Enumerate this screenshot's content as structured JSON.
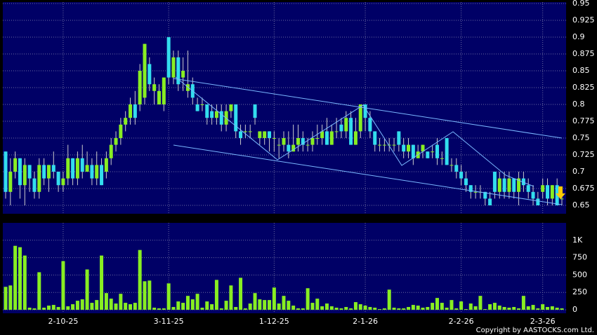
{
  "chart_data": {
    "type": "candlestick",
    "up_color": "#88ee22",
    "down_color": "#33ddee",
    "wick_color": "#cccccc",
    "volume_color": "#88ee22",
    "grid": true,
    "copyright": "Copyright by AASTOCKS.com Ltd.",
    "categories": [
      null,
      null,
      null,
      null,
      null,
      null,
      null,
      null,
      null,
      null,
      null,
      null,
      "2-10-25",
      null,
      null,
      null,
      null,
      null,
      null,
      null,
      null,
      null,
      null,
      null,
      null,
      null,
      null,
      null,
      null,
      null,
      null,
      null,
      null,
      null,
      "3-11-25",
      null,
      null,
      null,
      null,
      null,
      null,
      null,
      null,
      null,
      null,
      null,
      null,
      null,
      null,
      null,
      null,
      null,
      null,
      null,
      null,
      null,
      "1-12-25",
      null,
      null,
      null,
      null,
      null,
      null,
      null,
      null,
      null,
      null,
      null,
      null,
      null,
      null,
      null,
      null,
      null,
      null,
      "2-1-26",
      null,
      null,
      null,
      null,
      null,
      null,
      null,
      null,
      null,
      null,
      null,
      null,
      null,
      null,
      null,
      null,
      null,
      null,
      null,
      "2-2-26",
      null,
      null,
      null,
      null,
      null,
      null,
      null,
      null,
      null,
      null,
      null,
      null,
      null,
      null,
      null,
      null,
      "2-3-26",
      null,
      null,
      null,
      null
    ],
    "open": [
      0.73,
      0.67,
      0.7,
      0.72,
      0.68,
      0.71,
      0.69,
      0.67,
      0.71,
      0.69,
      0.71,
      0.7,
      0.68,
      0.69,
      0.72,
      0.69,
      0.72,
      0.7,
      0.71,
      0.69,
      0.71,
      0.7,
      0.72,
      0.74,
      0.75,
      0.77,
      0.78,
      0.8,
      0.8,
      0.81,
      0.86,
      0.82,
      0.8,
      0.8,
      0.9,
      0.84,
      0.87,
      0.84,
      0.82,
      0.83,
      0.8,
      0.8,
      0.8,
      0.79,
      0.78,
      0.79,
      0.77,
      0.79,
      0.8,
      0.76,
      0.76,
      0.76,
      0.8,
      0.75,
      0.75,
      0.76,
      0.75,
      0.74,
      0.74,
      0.74,
      0.73,
      0.74,
      0.75,
      0.74,
      0.74,
      0.75,
      0.75,
      0.76,
      0.74,
      0.76,
      0.77,
      0.76,
      0.78,
      0.74,
      0.76,
      0.8,
      0.78,
      0.76,
      0.74,
      0.74,
      0.74,
      0.74,
      0.76,
      0.74,
      0.73,
      0.74,
      0.72,
      0.73,
      0.73,
      0.73,
      0.74,
      0.72,
      0.75,
      0.71,
      0.71,
      0.7,
      0.69,
      0.68,
      0.67,
      0.67,
      0.67,
      0.66,
      0.7,
      0.67,
      0.69,
      0.67,
      0.69,
      0.67,
      0.69,
      0.68,
      0.67,
      0.66,
      0.67,
      0.68,
      0.66,
      0.68,
      0.66
    ],
    "high": [
      0.73,
      0.72,
      0.73,
      0.72,
      0.72,
      0.71,
      0.7,
      0.72,
      0.72,
      0.71,
      0.73,
      0.7,
      0.7,
      0.74,
      0.72,
      0.73,
      0.74,
      0.73,
      0.72,
      0.73,
      0.72,
      0.73,
      0.75,
      0.76,
      0.78,
      0.79,
      0.81,
      0.82,
      0.86,
      0.89,
      0.87,
      0.84,
      0.83,
      0.84,
      0.9,
      0.88,
      0.88,
      0.87,
      0.88,
      0.84,
      0.81,
      0.81,
      0.8,
      0.8,
      0.8,
      0.8,
      0.8,
      0.8,
      0.8,
      0.77,
      0.77,
      0.77,
      0.8,
      0.76,
      0.76,
      0.76,
      0.76,
      0.75,
      0.76,
      0.76,
      0.77,
      0.77,
      0.76,
      0.75,
      0.76,
      0.77,
      0.77,
      0.78,
      0.77,
      0.78,
      0.78,
      0.79,
      0.79,
      0.78,
      0.8,
      0.8,
      0.79,
      0.76,
      0.75,
      0.75,
      0.75,
      0.75,
      0.76,
      0.75,
      0.75,
      0.74,
      0.74,
      0.74,
      0.73,
      0.74,
      0.75,
      0.73,
      0.75,
      0.72,
      0.72,
      0.71,
      0.7,
      0.68,
      0.68,
      0.68,
      0.67,
      0.67,
      0.7,
      0.7,
      0.7,
      0.7,
      0.69,
      0.7,
      0.7,
      0.69,
      0.68,
      0.67,
      0.69,
      0.69,
      0.68,
      0.69,
      0.67
    ],
    "low": [
      0.66,
      0.65,
      0.69,
      0.66,
      0.65,
      0.67,
      0.66,
      0.66,
      0.68,
      0.67,
      0.69,
      0.67,
      0.67,
      0.68,
      0.68,
      0.68,
      0.69,
      0.7,
      0.68,
      0.68,
      0.68,
      0.69,
      0.71,
      0.73,
      0.74,
      0.76,
      0.77,
      0.77,
      0.79,
      0.8,
      0.82,
      0.8,
      0.8,
      0.79,
      0.83,
      0.83,
      0.82,
      0.82,
      0.81,
      0.8,
      0.79,
      0.79,
      0.77,
      0.77,
      0.77,
      0.76,
      0.76,
      0.78,
      0.75,
      0.74,
      0.75,
      0.75,
      0.77,
      0.74,
      0.74,
      0.73,
      0.73,
      0.72,
      0.73,
      0.72,
      0.73,
      0.73,
      0.73,
      0.73,
      0.73,
      0.74,
      0.74,
      0.74,
      0.74,
      0.75,
      0.75,
      0.75,
      0.74,
      0.74,
      0.75,
      0.76,
      0.75,
      0.73,
      0.73,
      0.73,
      0.73,
      0.73,
      0.73,
      0.72,
      0.72,
      0.71,
      0.72,
      0.72,
      0.72,
      0.72,
      0.71,
      0.71,
      0.71,
      0.7,
      0.69,
      0.68,
      0.67,
      0.66,
      0.66,
      0.66,
      0.65,
      0.65,
      0.66,
      0.66,
      0.66,
      0.66,
      0.66,
      0.65,
      0.67,
      0.66,
      0.65,
      0.65,
      0.66,
      0.65,
      0.65,
      0.65,
      0.65
    ],
    "close": [
      0.67,
      0.7,
      0.72,
      0.68,
      0.71,
      0.69,
      0.67,
      0.71,
      0.69,
      0.71,
      0.7,
      0.68,
      0.69,
      0.72,
      0.69,
      0.72,
      0.7,
      0.71,
      0.69,
      0.71,
      0.68,
      0.72,
      0.74,
      0.75,
      0.77,
      0.78,
      0.8,
      0.78,
      0.85,
      0.89,
      0.83,
      0.83,
      0.82,
      0.84,
      0.84,
      0.87,
      0.83,
      0.85,
      0.83,
      0.81,
      0.79,
      0.8,
      0.78,
      0.78,
      0.79,
      0.77,
      0.79,
      0.8,
      0.76,
      0.75,
      0.76,
      0.76,
      0.78,
      0.76,
      0.76,
      0.75,
      0.75,
      0.74,
      0.75,
      0.73,
      0.74,
      0.75,
      0.74,
      0.74,
      0.75,
      0.75,
      0.76,
      0.74,
      0.76,
      0.76,
      0.76,
      0.78,
      0.74,
      0.76,
      0.8,
      0.78,
      0.76,
      0.74,
      0.74,
      0.74,
      0.74,
      0.74,
      0.74,
      0.73,
      0.74,
      0.72,
      0.73,
      0.74,
      0.72,
      0.73,
      0.72,
      0.72,
      0.71,
      0.71,
      0.7,
      0.69,
      0.68,
      0.67,
      0.67,
      0.67,
      0.66,
      0.65,
      0.67,
      0.69,
      0.67,
      0.69,
      0.67,
      0.69,
      0.68,
      0.67,
      0.66,
      0.65,
      0.68,
      0.66,
      0.68,
      0.65,
      0.66
    ],
    "volume": [
      330,
      350,
      920,
      900,
      780,
      30,
      20,
      540,
      30,
      60,
      70,
      40,
      700,
      50,
      80,
      130,
      150,
      580,
      100,
      140,
      780,
      240,
      160,
      90,
      230,
      100,
      80,
      100,
      860,
      410,
      420,
      30,
      20,
      20,
      380,
      40,
      120,
      100,
      200,
      150,
      230,
      30,
      120,
      80,
      430,
      20,
      130,
      350,
      40,
      460,
      20,
      90,
      240,
      150,
      140,
      140,
      320,
      90,
      200,
      130,
      60,
      20,
      20,
      310,
      100,
      160,
      50,
      90,
      50,
      30,
      20,
      40,
      20,
      110,
      80,
      60,
      40,
      30,
      10,
      20,
      290,
      30,
      20,
      20,
      40,
      70,
      60,
      30,
      40,
      100,
      170,
      100,
      30,
      140,
      20,
      120,
      10,
      90,
      50,
      200,
      10,
      80,
      100,
      60,
      40,
      30,
      40,
      20,
      200,
      50,
      70,
      20,
      80,
      40,
      50,
      30,
      20
    ],
    "ylim": [
      0.65,
      0.95
    ],
    "yticks": [
      0.65,
      0.675,
      0.7,
      0.725,
      0.75,
      0.775,
      0.8,
      0.825,
      0.85,
      0.875,
      0.9,
      0.925,
      0.95
    ],
    "y2lim": [
      0,
      1250
    ],
    "y2ticks": [
      0,
      250,
      500,
      750,
      {
        "value": 1000,
        "label": "1K"
      }
    ]
  }
}
